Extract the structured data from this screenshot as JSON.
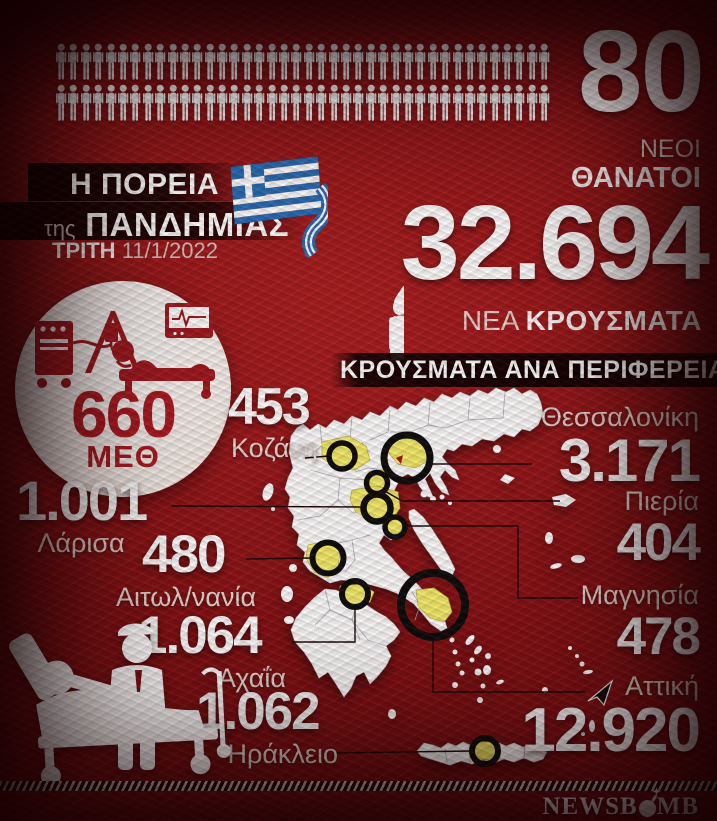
{
  "colors": {
    "background_red": "#8f1417",
    "deep_red": "#3a0507",
    "accent_red": "#ae1b22",
    "map_yellow": "#f5ee6d",
    "bar_dark": "#170303",
    "white": "#ffffff",
    "muted_text": "#e9dcd6",
    "flag_blue": "#2a6db5"
  },
  "deaths": {
    "value": "80",
    "label_line1": "ΝΕΟΙ",
    "label_line2": "ΘΑΝΑΤΟΙ",
    "pictogram_rows": 2,
    "pictogram_per_row": 40
  },
  "title": {
    "line1": "Η ΠΟΡΕΙΑ",
    "line2_article": "της",
    "line2": "ΠΑΝΔΗΜΙΑΣ",
    "day": "ΤΡΙΤΗ",
    "date": "11/1/2022"
  },
  "cases": {
    "value": "32.694",
    "label_prefix": "ΝΕΑ",
    "label_main": "ΚΡΟΥΣΜΑΤΑ"
  },
  "section": {
    "title": "ΚΡΟΥΣΜΑΤΑ ΑΝΑ ΠΕΡΙΦΕΡΕΙΑ"
  },
  "icu": {
    "value": "660",
    "label": "ΜΕΘ"
  },
  "regions": [
    {
      "name": "Κοζάνη",
      "value": "453"
    },
    {
      "name": "Θεσσαλονίκη",
      "value": "3.171"
    },
    {
      "name": "Πιερία",
      "value": "404"
    },
    {
      "name": "Μαγνησία",
      "value": "478"
    },
    {
      "name": "Αττική",
      "value": "12.920"
    },
    {
      "name": "Λάρισα",
      "value": "1.001"
    },
    {
      "name": "Αιτωλ/νανία",
      "value": "480"
    },
    {
      "name": "Αχαΐα",
      "value": "1.064"
    },
    {
      "name": "Ηράκλειο",
      "value": "1.062"
    }
  ],
  "footer": {
    "brand_pre": "NEWSB",
    "brand_post": "MB",
    "brand_full": "NEWSBOMB"
  },
  "chart_data": {
    "type": "table",
    "title": "Η ΠΟΡΕΙΑ της ΠΑΝΔΗΜΙΑΣ — ΤΡΙΤΗ 11/1/2022",
    "metrics": {
      "new_deaths": 80,
      "new_cases": 32694,
      "icu_patients": 660
    },
    "columns": [
      "region",
      "new_cases"
    ],
    "rows": [
      [
        "Κοζάνη",
        453
      ],
      [
        "Θεσσαλονίκη",
        3171
      ],
      [
        "Πιερία",
        404
      ],
      [
        "Μαγνησία",
        478
      ],
      [
        "Αττική",
        12920
      ],
      [
        "Λάρισα",
        1001
      ],
      [
        "Αιτωλ/νανία",
        480
      ],
      [
        "Αχαΐα",
        1064
      ],
      [
        "Ηράκλειο",
        1062
      ]
    ],
    "notes": "choropleth map of Greece; highlighted prefectures in yellow with black circle markers"
  }
}
